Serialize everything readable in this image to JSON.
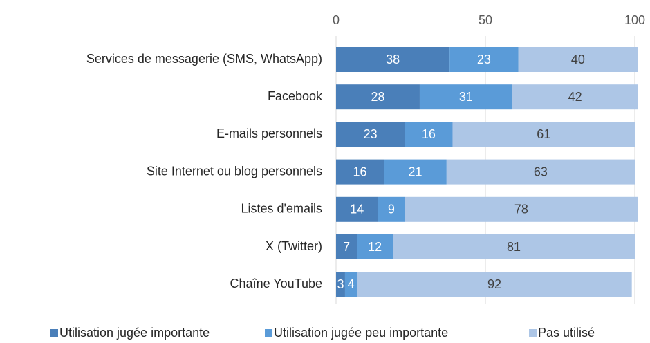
{
  "chart_data": {
    "type": "bar",
    "orientation": "horizontal",
    "stacked": true,
    "categories": [
      "Services de messagerie (SMS, WhatsApp)",
      "Facebook",
      "E-mails personnels",
      "Site Internet ou blog personnels",
      "Listes d'emails",
      "X (Twitter)",
      "Chaîne YouTube"
    ],
    "series": [
      {
        "name": "Utilisation jugée importante",
        "color": "#4a7fb9",
        "values": [
          38,
          28,
          23,
          16,
          14,
          7,
          3
        ]
      },
      {
        "name": "Utilisation jugée peu importante",
        "color": "#5a9bd8",
        "values": [
          23,
          31,
          16,
          21,
          9,
          12,
          4
        ]
      },
      {
        "name": "Pas utilisé",
        "color": "#adc6e6",
        "values": [
          40,
          42,
          61,
          63,
          78,
          81,
          92
        ]
      }
    ],
    "xlim": [
      0,
      100
    ],
    "xticks": [
      0,
      50,
      100
    ],
    "grid": true,
    "legend": "bottom"
  }
}
